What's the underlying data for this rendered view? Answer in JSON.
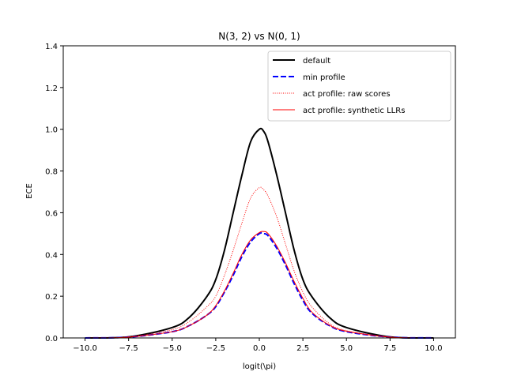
{
  "chart_data": {
    "type": "line",
    "title": "N(3, 2) vs N(0, 1)",
    "xlabel": "logit(\\pi)",
    "ylabel": "ECE",
    "xlim": [
      -11.25,
      11.25
    ],
    "ylim": [
      0,
      1.4
    ],
    "xticks": [
      -10.0,
      -7.5,
      -5.0,
      -2.5,
      0.0,
      2.5,
      5.0,
      7.5,
      10.0
    ],
    "xtick_labels": [
      "−10.0",
      "−7.5",
      "−5.0",
      "−2.5",
      "0.0",
      "2.5",
      "5.0",
      "7.5",
      "10.0"
    ],
    "yticks": [
      0.0,
      0.2,
      0.4,
      0.6,
      0.8,
      1.0,
      1.2,
      1.4
    ],
    "ytick_labels": [
      "0.0",
      "0.2",
      "0.4",
      "0.6",
      "0.8",
      "1.0",
      "1.2",
      "1.4"
    ],
    "grid": false,
    "legend_position": "top-right",
    "x": [
      -10,
      -7.5,
      -5,
      -4,
      -3,
      -2.5,
      -2,
      -1.5,
      -1,
      -0.5,
      0,
      0.25,
      0.5,
      1,
      1.5,
      2,
      2.5,
      3,
      4,
      5,
      7.5,
      10
    ],
    "series": [
      {
        "name": "default",
        "color": "#000000",
        "style": "solid",
        "values": [
          0.0001,
          0.005,
          0.05,
          0.1,
          0.2,
          0.28,
          0.42,
          0.6,
          0.78,
          0.94,
          1.0,
          0.99,
          0.94,
          0.78,
          0.6,
          0.42,
          0.28,
          0.2,
          0.1,
          0.05,
          0.005,
          0.0001
        ]
      },
      {
        "name": "min profile",
        "color": "#0000ff",
        "style": "dashed",
        "values": [
          0.0001,
          0.004,
          0.03,
          0.06,
          0.11,
          0.15,
          0.22,
          0.3,
          0.39,
          0.46,
          0.5,
          0.5,
          0.49,
          0.43,
          0.35,
          0.26,
          0.18,
          0.12,
          0.06,
          0.03,
          0.004,
          0.0001
        ]
      },
      {
        "name": "act profile: raw scores",
        "color": "#ff0000",
        "style": "dotted",
        "values": [
          0.0001,
          0.005,
          0.04,
          0.08,
          0.15,
          0.2,
          0.3,
          0.42,
          0.55,
          0.67,
          0.72,
          0.71,
          0.68,
          0.58,
          0.45,
          0.32,
          0.22,
          0.15,
          0.07,
          0.035,
          0.004,
          0.0001
        ]
      },
      {
        "name": "act profile: synthetic LLRs",
        "color": "#ff0000",
        "style": "solid-thin",
        "values": [
          0.0001,
          0.004,
          0.03,
          0.06,
          0.11,
          0.155,
          0.225,
          0.31,
          0.4,
          0.47,
          0.505,
          0.51,
          0.5,
          0.44,
          0.36,
          0.27,
          0.19,
          0.125,
          0.062,
          0.032,
          0.004,
          0.0001
        ]
      }
    ]
  }
}
